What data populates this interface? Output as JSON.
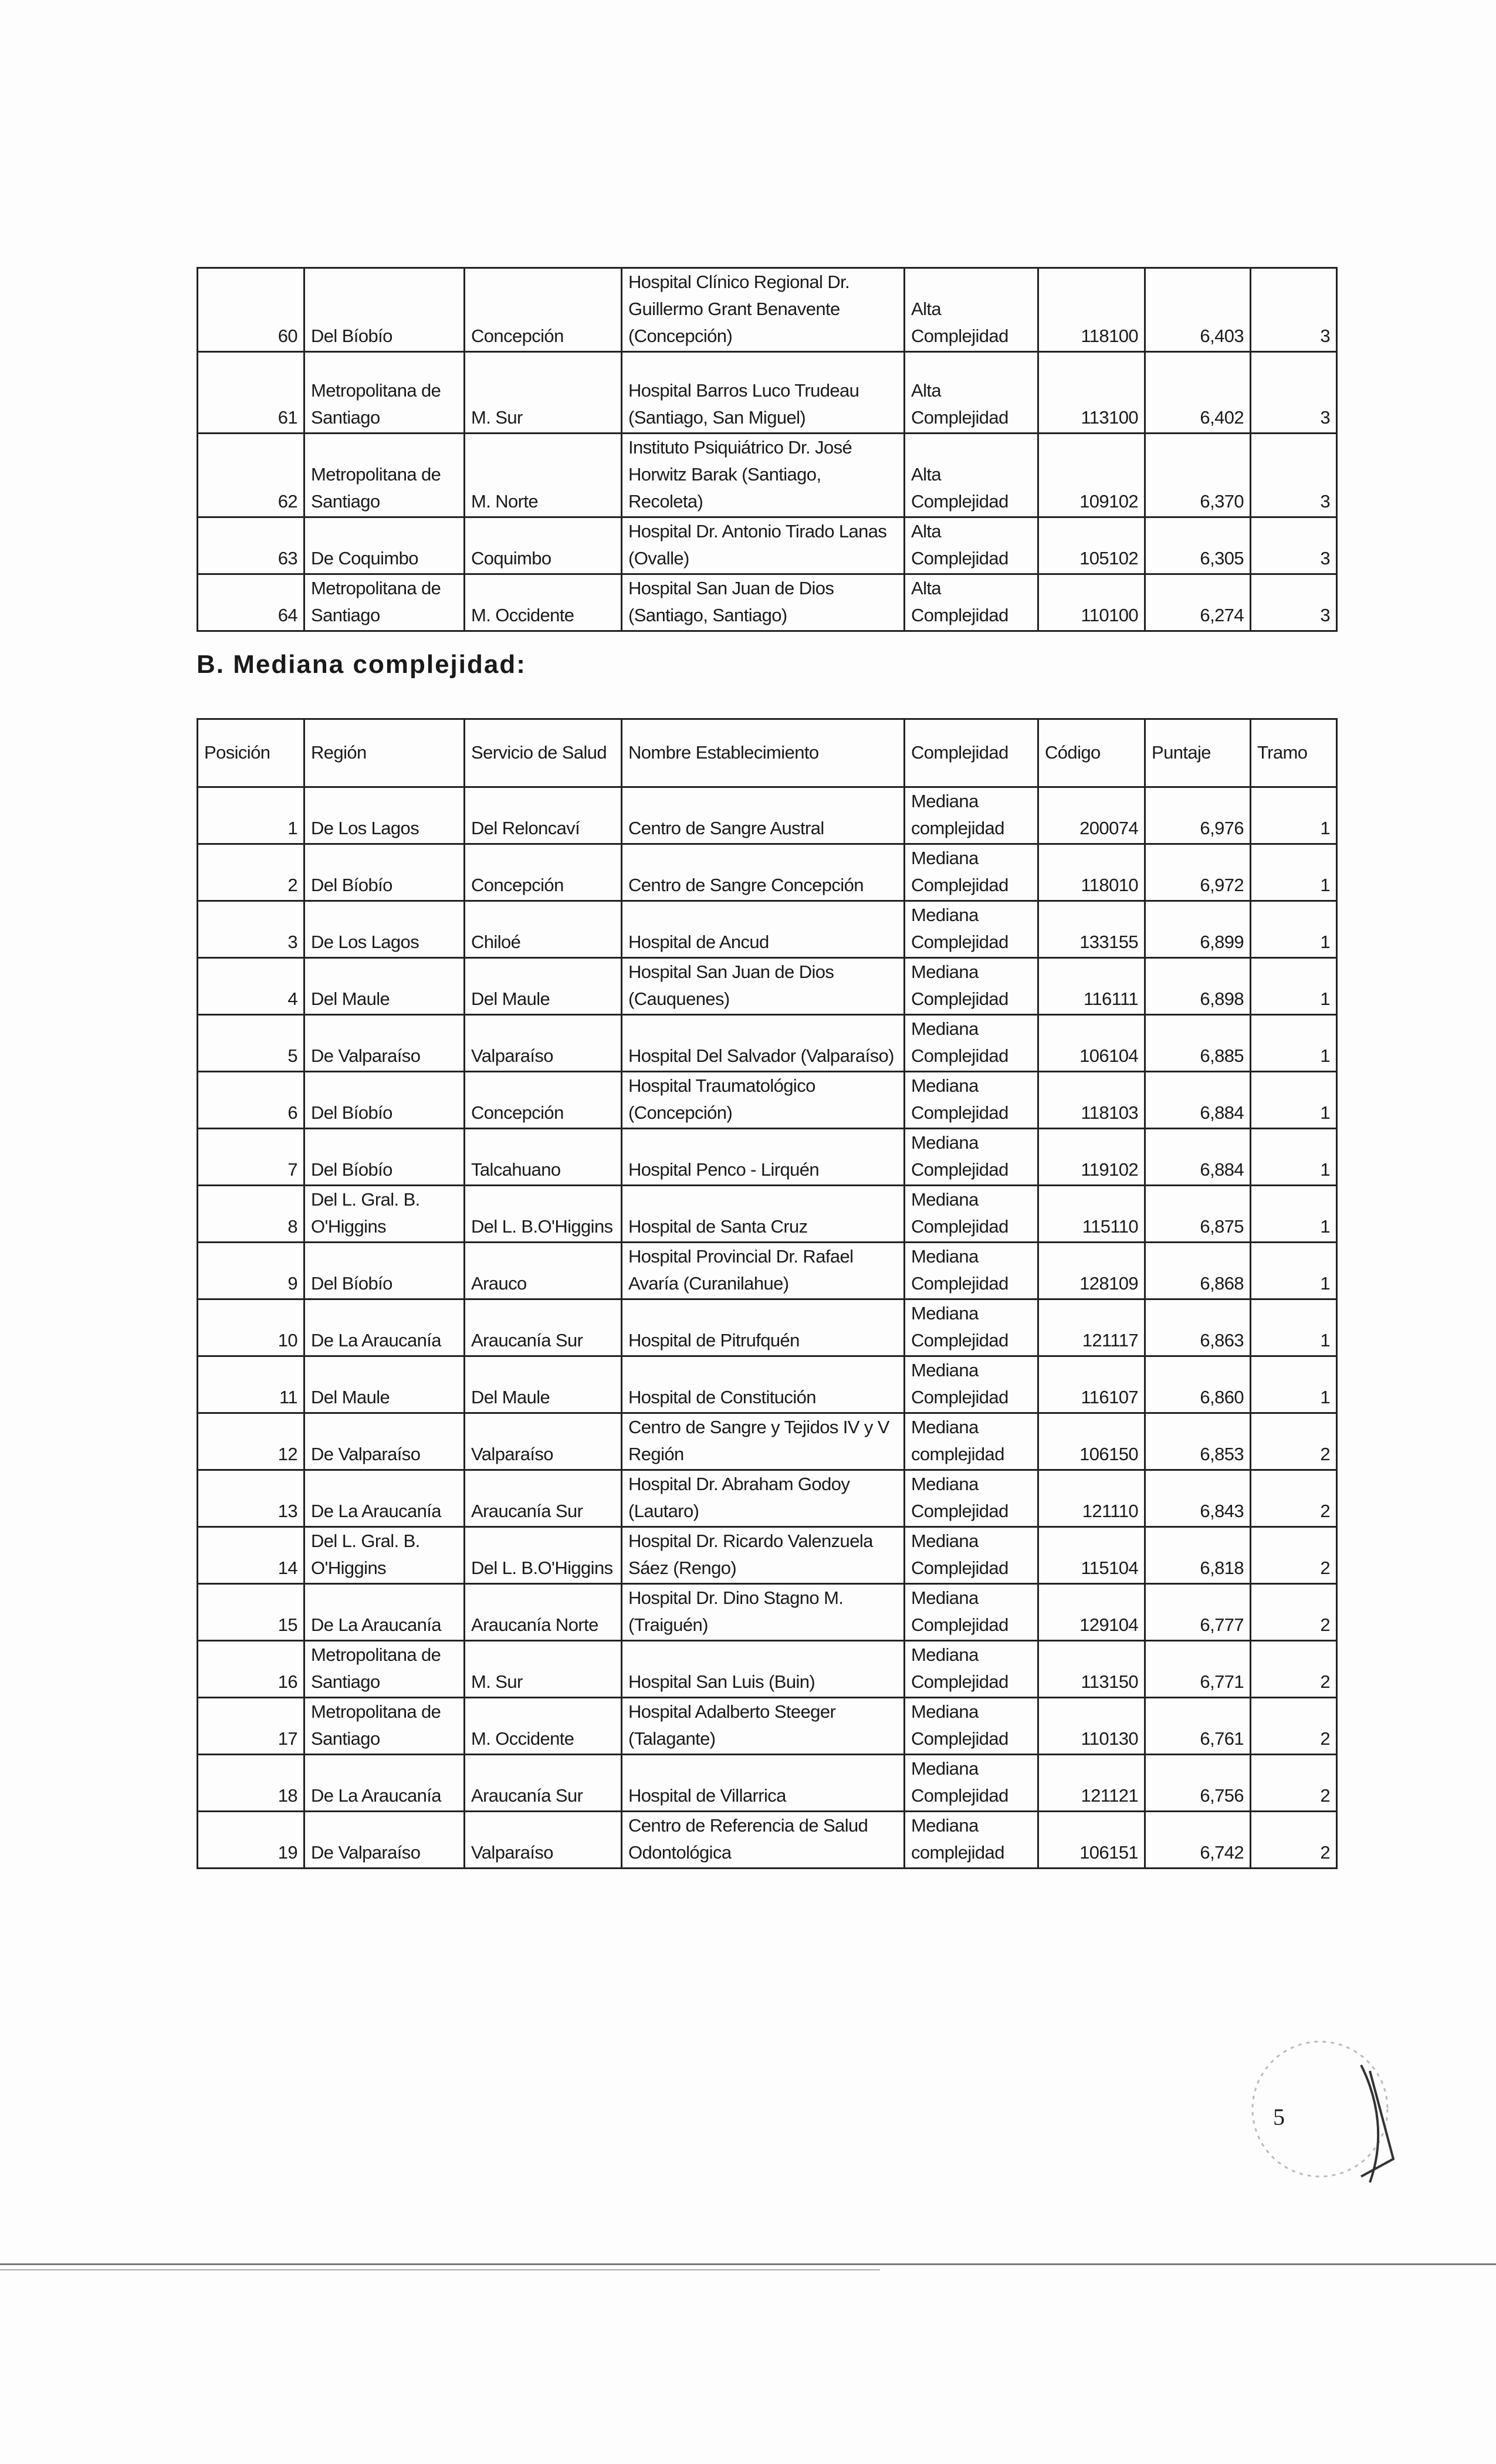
{
  "table_top": {
    "rows": [
      [
        "60",
        "Del Bíobío",
        "Concepción",
        "Hospital Clínico Regional Dr. Guillermo Grant Benavente (Concepción)",
        "Alta Complejidad",
        "118100",
        "6,403",
        "3"
      ],
      [
        "61",
        "Metropolitana de Santiago",
        "M. Sur",
        "Hospital Barros Luco Trudeau (Santiago, San Miguel)",
        "Alta Complejidad",
        "113100",
        "6,402",
        "3"
      ],
      [
        "62",
        "Metropolitana de Santiago",
        "M. Norte",
        "Instituto Psiquiátrico Dr. José Horwitz Barak (Santiago, Recoleta)",
        "Alta Complejidad",
        "109102",
        "6,370",
        "3"
      ],
      [
        "63",
        "De Coquimbo",
        "Coquimbo",
        "Hospital Dr. Antonio Tirado Lanas (Ovalle)",
        "Alta Complejidad",
        "105102",
        "6,305",
        "3"
      ],
      [
        "64",
        "Metropolitana de Santiago",
        "M. Occidente",
        "Hospital San Juan de Dios (Santiago, Santiago)",
        "Alta Complejidad",
        "110100",
        "6,274",
        "3"
      ]
    ]
  },
  "section_b": {
    "heading": "B. Mediana complejidad:",
    "headers": [
      "Posición",
      "Región",
      "Servicio de Salud",
      "Nombre Establecimiento",
      "Complejidad",
      "Código",
      "Puntaje",
      "Tramo"
    ],
    "rows": [
      [
        "1",
        "De Los Lagos",
        "Del Reloncaví",
        "Centro de Sangre Austral",
        "Mediana complejidad",
        "200074",
        "6,976",
        "1"
      ],
      [
        "2",
        "Del Bíobío",
        "Concepción",
        "Centro de Sangre Concepción",
        "Mediana Complejidad",
        "118010",
        "6,972",
        "1"
      ],
      [
        "3",
        "De Los Lagos",
        "Chiloé",
        "Hospital de Ancud",
        "Mediana Complejidad",
        "133155",
        "6,899",
        "1"
      ],
      [
        "4",
        "Del Maule",
        "Del Maule",
        "Hospital San Juan de Dios (Cauquenes)",
        "Mediana Complejidad",
        "116111",
        "6,898",
        "1"
      ],
      [
        "5",
        "De Valparaíso",
        "Valparaíso",
        "Hospital Del Salvador (Valparaíso)",
        "Mediana Complejidad",
        "106104",
        "6,885",
        "1"
      ],
      [
        "6",
        "Del Bíobío",
        "Concepción",
        "Hospital Traumatológico (Concepción)",
        "Mediana Complejidad",
        "118103",
        "6,884",
        "1"
      ],
      [
        "7",
        "Del Bíobío",
        "Talcahuano",
        "Hospital Penco - Lirquén",
        "Mediana Complejidad",
        "119102",
        "6,884",
        "1"
      ],
      [
        "8",
        "Del L. Gral. B. O'Higgins",
        "Del L. B.O'Higgins",
        "Hospital de Santa Cruz",
        "Mediana Complejidad",
        "115110",
        "6,875",
        "1"
      ],
      [
        "9",
        "Del Bíobío",
        "Arauco",
        "Hospital Provincial Dr. Rafael Avaría (Curanilahue)",
        "Mediana Complejidad",
        "128109",
        "6,868",
        "1"
      ],
      [
        "10",
        "De La Araucanía",
        "Araucanía Sur",
        "Hospital de Pitrufquén",
        "Mediana Complejidad",
        "121117",
        "6,863",
        "1"
      ],
      [
        "11",
        "Del Maule",
        "Del Maule",
        "Hospital de Constitución",
        "Mediana Complejidad",
        "116107",
        "6,860",
        "1"
      ],
      [
        "12",
        "De Valparaíso",
        "Valparaíso",
        "Centro de Sangre y Tejidos IV y V Región",
        "Mediana complejidad",
        "106150",
        "6,853",
        "2"
      ],
      [
        "13",
        "De La Araucanía",
        "Araucanía Sur",
        "Hospital Dr. Abraham Godoy (Lautaro)",
        "Mediana Complejidad",
        "121110",
        "6,843",
        "2"
      ],
      [
        "14",
        "Del L. Gral. B. O'Higgins",
        "Del L. B.O'Higgins",
        "Hospital Dr. Ricardo Valenzuela Sáez (Rengo)",
        "Mediana Complejidad",
        "115104",
        "6,818",
        "2"
      ],
      [
        "15",
        "De La Araucanía",
        "Araucanía Norte",
        "Hospital Dr. Dino Stagno M.(Traiguén)",
        "Mediana Complejidad",
        "129104",
        "6,777",
        "2"
      ],
      [
        "16",
        "Metropolitana de Santiago",
        "M. Sur",
        "Hospital San Luis (Buin)",
        "Mediana Complejidad",
        "113150",
        "6,771",
        "2"
      ],
      [
        "17",
        "Metropolitana de Santiago",
        "M. Occidente",
        "Hospital Adalberto Steeger (Talagante)",
        "Mediana Complejidad",
        "110130",
        "6,761",
        "2"
      ],
      [
        "18",
        "De La Araucanía",
        "Araucanía Sur",
        "Hospital de Villarrica",
        "Mediana Complejidad",
        "121121",
        "6,756",
        "2"
      ],
      [
        "19",
        "De Valparaíso",
        "Valparaíso",
        "Centro de Referencia de Salud Odontológica",
        "Mediana complejidad",
        "106151",
        "6,742",
        "2"
      ]
    ]
  },
  "page_number": "5"
}
